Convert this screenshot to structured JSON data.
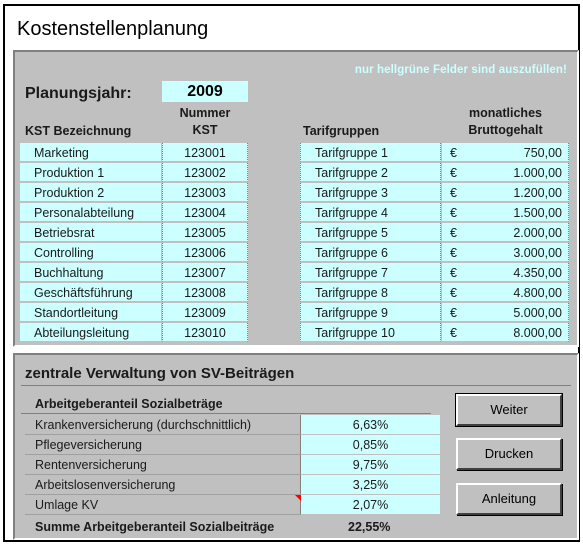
{
  "title": "Kostenstellenplanung",
  "hint": "nur hellgrüne Felder sind auszufüllen!",
  "planning_year_label": "Planungsjahr:",
  "planning_year": "2009",
  "headers": {
    "kst_name": "KST Bezeichnung",
    "kst_num_line1": "Nummer",
    "kst_num_line2": "KST",
    "tarif": "Tarifgruppen",
    "salary_line1": "monatliches",
    "salary_line2": "Bruttogehalt"
  },
  "kst": [
    {
      "name": "Marketing",
      "num": "123001"
    },
    {
      "name": "Produktion 1",
      "num": "123002"
    },
    {
      "name": "Produktion 2",
      "num": "123003"
    },
    {
      "name": "Personalabteilung",
      "num": "123004"
    },
    {
      "name": "Betriebsrat",
      "num": "123005"
    },
    {
      "name": "Controlling",
      "num": "123006"
    },
    {
      "name": "Buchhaltung",
      "num": "123007"
    },
    {
      "name": "Geschäftsführung",
      "num": "123008"
    },
    {
      "name": "Standortleitung",
      "num": "123009"
    },
    {
      "name": "Abteilungsleitung",
      "num": "123010"
    }
  ],
  "tarif": [
    {
      "name": "Tarifgruppe 1",
      "currency": "€",
      "amount": "750,00"
    },
    {
      "name": "Tarifgruppe 2",
      "currency": "€",
      "amount": "1.000,00"
    },
    {
      "name": "Tarifgruppe 3",
      "currency": "€",
      "amount": "1.200,00"
    },
    {
      "name": "Tarifgruppe 4",
      "currency": "€",
      "amount": "1.500,00"
    },
    {
      "name": "Tarifgruppe 5",
      "currency": "€",
      "amount": "2.000,00"
    },
    {
      "name": "Tarifgruppe 6",
      "currency": "€",
      "amount": "3.000,00"
    },
    {
      "name": "Tarifgruppe 7",
      "currency": "€",
      "amount": "4.350,00"
    },
    {
      "name": "Tarifgruppe 8",
      "currency": "€",
      "amount": "4.800,00"
    },
    {
      "name": "Tarifgruppe 9",
      "currency": "€",
      "amount": "5.000,00"
    },
    {
      "name": "Tarifgruppe 10",
      "currency": "€",
      "amount": "8.000,00"
    }
  ],
  "sv": {
    "title": "zentrale Verwaltung von SV-Beiträgen",
    "employer_header": "Arbeitgeberanteil Sozialbeträge",
    "rows": [
      {
        "label": "Krankenversicherung (durchschnittlich)",
        "value": "6,63%"
      },
      {
        "label": "Pflegeversicherung",
        "value": "0,85%"
      },
      {
        "label": "Rentenversicherung",
        "value": "9,75%"
      },
      {
        "label": "Arbeitslosenversicherung",
        "value": "3,25%"
      },
      {
        "label": "Umlage KV",
        "value": "2,07%"
      }
    ],
    "sum_label": "Summe Arbeitgeberanteil Sozialbeiträge",
    "sum_value": "22,55%"
  },
  "buttons": {
    "weiter": "Weiter",
    "drucken": "Drucken",
    "anleitung": "Anleitung"
  },
  "colors": {
    "input_fill": "#ccffff",
    "panel": "#c0c0c0",
    "hint": "#ccffff"
  }
}
